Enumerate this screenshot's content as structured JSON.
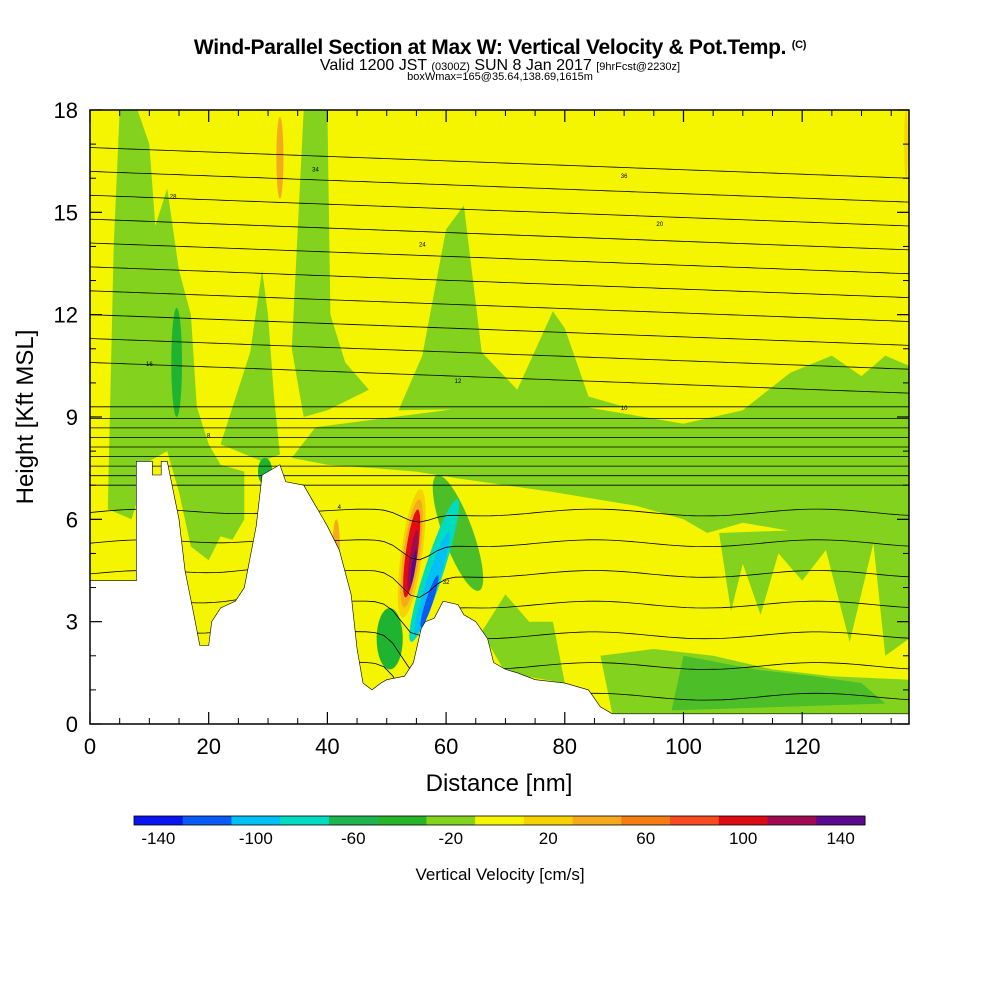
{
  "header": {
    "title": "Wind-Parallel Section at Max W: Vertical Velocity & Pot.Temp.",
    "copyright": "(C)",
    "subtitle_main": "Valid 1200 JST",
    "subtitle_utc": "(0300Z)",
    "subtitle_date": "SUN 8 Jan 2017",
    "subtitle_fcst": "[9hrFcst@2230z]",
    "subtitle_2": "boxWmax=165@35.64,138.69,1615m"
  },
  "colorbar": {
    "title": "Vertical Velocity [cm/s]",
    "tick_labels": [
      "-140",
      "-100",
      "-60",
      "-20",
      "20",
      "60",
      "100",
      "140"
    ],
    "colors": [
      "#0a14f0",
      "#0a5af5",
      "#00c0f5",
      "#00dcc0",
      "#1eb450",
      "#28b428",
      "#82d21e",
      "#f5f500",
      "#f5d200",
      "#f5aa1e",
      "#f57d14",
      "#f54b1e",
      "#dc0a14",
      "#a00a50",
      "#5a0a8c"
    ]
  },
  "colors": {
    "green_dark": "#1eb432",
    "green_mid": "#4cbe28",
    "green_light": "#82d21e",
    "yellow": "#f5f500",
    "gold": "#f5d200",
    "orange": "#f5aa1e",
    "red": "#e60a14",
    "dark_red": "#a00a50",
    "purple": "#5a0a8c",
    "blue": "#0a5af5",
    "cyan": "#00c0f5",
    "teal": "#00dcc0",
    "terrain": "#ffffff"
  },
  "chart_data": {
    "type": "heatmap",
    "title": "Wind-Parallel Section at Max W: Vertical Velocity & Pot.Temp.",
    "xlabel": "Distance [nm]",
    "ylabel": "Height [Kft MSL]",
    "xlim": [
      0,
      138
    ],
    "ylim": [
      0,
      18
    ],
    "x_ticks": [
      0,
      20,
      40,
      60,
      80,
      100,
      120
    ],
    "y_ticks": [
      0,
      3,
      6,
      9,
      12,
      15,
      18
    ],
    "field": "Vertical Velocity [cm/s]",
    "contours": "Potential Temperature",
    "max_w": 165,
    "terrain": [
      [
        0,
        4.2
      ],
      [
        4,
        4.2
      ],
      [
        7.8,
        4.2
      ],
      [
        7.8,
        7.7
      ],
      [
        10.5,
        7.7
      ],
      [
        10.5,
        7.3
      ],
      [
        12,
        7.3
      ],
      [
        12,
        7.7
      ],
      [
        13,
        7.7
      ],
      [
        15,
        6.0
      ],
      [
        16,
        4.5
      ],
      [
        17.5,
        3.2
      ],
      [
        18.5,
        2.3
      ],
      [
        20,
        2.3
      ],
      [
        20.5,
        3.0
      ],
      [
        22,
        3.4
      ],
      [
        24.5,
        3.6
      ],
      [
        26,
        4.0
      ],
      [
        28,
        5.8
      ],
      [
        29,
        7.3
      ],
      [
        32,
        7.6
      ],
      [
        33,
        7.1
      ],
      [
        36,
        7.0
      ],
      [
        38,
        6.4
      ],
      [
        39,
        6.1
      ],
      [
        40,
        5.8
      ],
      [
        42,
        5.1
      ],
      [
        44,
        3.8
      ],
      [
        45,
        2.2
      ],
      [
        46,
        1.2
      ],
      [
        47.5,
        1.0
      ],
      [
        49,
        1.2
      ],
      [
        50,
        1.3
      ],
      [
        53,
        1.4
      ],
      [
        54.5,
        1.8
      ],
      [
        55.8,
        2.8
      ],
      [
        56.5,
        3.0
      ],
      [
        58,
        3.1
      ],
      [
        59.5,
        3.6
      ],
      [
        62,
        3.5
      ],
      [
        63,
        3.2
      ],
      [
        65,
        3.0
      ],
      [
        67,
        2.5
      ],
      [
        68,
        1.8
      ],
      [
        70,
        1.6
      ],
      [
        72,
        1.5
      ],
      [
        75,
        1.3
      ],
      [
        80,
        1.2
      ],
      [
        84,
        1.0
      ],
      [
        86,
        0.5
      ],
      [
        88,
        0.3
      ],
      [
        90,
        0.3
      ],
      [
        138,
        0.3
      ]
    ],
    "theta_labels": [
      "32",
      "34",
      "36",
      "28",
      "24",
      "20",
      "16",
      "12",
      "10",
      "8",
      "4"
    ]
  }
}
